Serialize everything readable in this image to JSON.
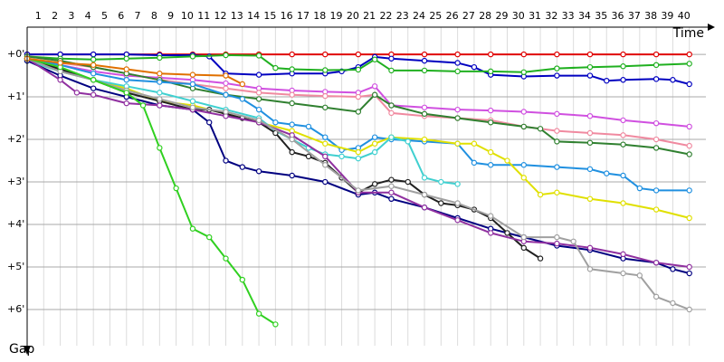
{
  "chart_data": {
    "type": "line",
    "x_label": "Time",
    "y_label": "Gap",
    "xlim": [
      0,
      41
    ],
    "ylim": [
      -0.64,
      6.98
    ],
    "xticks": [
      1,
      2,
      3,
      4,
      5,
      6,
      7,
      8,
      9,
      10,
      11,
      12,
      13,
      14,
      15,
      16,
      17,
      18,
      19,
      20,
      21,
      22,
      23,
      24,
      25,
      26,
      27,
      28,
      29,
      30,
      31,
      32,
      33,
      34,
      35,
      36,
      37,
      38,
      39,
      40
    ],
    "yticks": [
      {
        "value": 0,
        "label": "+0'"
      },
      {
        "value": 1,
        "label": "+1'"
      },
      {
        "value": 2,
        "label": "+2'"
      },
      {
        "value": 3,
        "label": "+3'"
      },
      {
        "value": 4,
        "label": "+4'"
      },
      {
        "value": 5,
        "label": "+5'"
      },
      {
        "value": 6,
        "label": "+6'"
      }
    ],
    "grid": true,
    "series": [
      {
        "color": "#e00000",
        "x": [
          0,
          2,
          4,
          6,
          8,
          10,
          12,
          14,
          16,
          18,
          20,
          22,
          24,
          26,
          28,
          30,
          32,
          34,
          36,
          38,
          40
        ],
        "values": [
          0,
          0,
          0,
          0,
          0,
          0,
          0,
          0,
          0,
          0,
          0,
          0,
          0,
          0,
          0,
          0,
          0,
          0,
          0,
          0,
          0
        ]
      },
      {
        "color": "#0000c0",
        "x": [
          0,
          2,
          4,
          6,
          8,
          10,
          11,
          12,
          14,
          16,
          18,
          19,
          20,
          21,
          22,
          24,
          26,
          27,
          28,
          30,
          32,
          34,
          35,
          36,
          38,
          39,
          40
        ],
        "values": [
          0,
          0,
          0,
          0,
          0.02,
          0.02,
          0.05,
          0.45,
          0.48,
          0.45,
          0.45,
          0.4,
          0.3,
          0.06,
          0.1,
          0.15,
          0.2,
          0.3,
          0.48,
          0.52,
          0.5,
          0.5,
          0.62,
          0.6,
          0.58,
          0.6,
          0.7
        ]
      },
      {
        "color": "#20b020",
        "x": [
          0,
          2,
          4,
          6,
          8,
          10,
          12,
          14,
          15,
          16,
          18,
          20,
          21,
          22,
          24,
          26,
          28,
          30,
          32,
          34,
          36,
          38,
          40
        ],
        "values": [
          0.05,
          0.1,
          0.12,
          0.1,
          0.08,
          0.05,
          0.02,
          0.03,
          0.32,
          0.35,
          0.37,
          0.36,
          0.12,
          0.38,
          0.38,
          0.4,
          0.4,
          0.42,
          0.33,
          0.3,
          0.28,
          0.25,
          0.22
        ]
      },
      {
        "color": "#d050e0",
        "x": [
          0,
          2,
          4,
          6,
          8,
          10,
          12,
          14,
          16,
          18,
          20,
          21,
          22,
          24,
          26,
          28,
          30,
          32,
          34,
          36,
          38,
          40
        ],
        "values": [
          0.1,
          0.25,
          0.4,
          0.5,
          0.55,
          0.6,
          0.68,
          0.8,
          0.85,
          0.88,
          0.9,
          0.75,
          1.2,
          1.25,
          1.3,
          1.32,
          1.35,
          1.4,
          1.45,
          1.55,
          1.62,
          1.7
        ]
      },
      {
        "color": "#f08aa0",
        "x": [
          0,
          2,
          4,
          6,
          8,
          10,
          12,
          14,
          16,
          18,
          20,
          21,
          22,
          24,
          26,
          28,
          30,
          32,
          34,
          36,
          38,
          40
        ],
        "values": [
          0.1,
          0.2,
          0.3,
          0.45,
          0.6,
          0.7,
          0.8,
          0.9,
          0.95,
          0.98,
          1.0,
          0.95,
          1.38,
          1.45,
          1.5,
          1.55,
          1.7,
          1.8,
          1.85,
          1.9,
          2.0,
          2.15
        ]
      },
      {
        "color": "#308030",
        "x": [
          0,
          2,
          4,
          6,
          8,
          10,
          12,
          14,
          16,
          18,
          20,
          21,
          22,
          24,
          26,
          28,
          30,
          31,
          32,
          34,
          36,
          38,
          40
        ],
        "values": [
          0.05,
          0.15,
          0.3,
          0.45,
          0.6,
          0.8,
          0.95,
          1.05,
          1.15,
          1.25,
          1.35,
          0.95,
          1.2,
          1.4,
          1.5,
          1.6,
          1.7,
          1.75,
          2.05,
          2.08,
          2.12,
          2.2,
          2.35
        ]
      },
      {
        "color": "#2090e0",
        "x": [
          0,
          2,
          4,
          6,
          8,
          10,
          12,
          13,
          14,
          15,
          16,
          17,
          18,
          19,
          20,
          21,
          22,
          24,
          26,
          27,
          28,
          30,
          32,
          34,
          35,
          36,
          37,
          38,
          40
        ],
        "values": [
          0.1,
          0.25,
          0.45,
          0.6,
          0.65,
          0.7,
          0.95,
          1.05,
          1.3,
          1.6,
          1.65,
          1.7,
          1.95,
          2.25,
          2.2,
          1.95,
          2.0,
          2.05,
          2.1,
          2.55,
          2.6,
          2.6,
          2.65,
          2.7,
          2.8,
          2.85,
          3.15,
          3.2,
          3.2
        ]
      },
      {
        "color": "#e0e000",
        "x": [
          0,
          2,
          4,
          6,
          8,
          10,
          12,
          14,
          16,
          18,
          20,
          21,
          22,
          24,
          26,
          27,
          28,
          29,
          30,
          31,
          32,
          34,
          36,
          38,
          40
        ],
        "values": [
          0.15,
          0.4,
          0.6,
          0.8,
          1.1,
          1.2,
          1.4,
          1.6,
          1.8,
          2.1,
          2.3,
          2.1,
          1.95,
          2.0,
          2.1,
          2.1,
          2.3,
          2.5,
          2.9,
          3.3,
          3.25,
          3.4,
          3.5,
          3.65,
          3.85
        ]
      },
      {
        "color": "#40d0d0",
        "x": [
          0,
          2,
          4,
          6,
          8,
          10,
          12,
          14,
          15,
          16,
          17,
          18,
          19,
          20,
          21,
          22,
          23,
          24,
          25,
          26
        ],
        "values": [
          0.15,
          0.4,
          0.6,
          0.75,
          0.9,
          1.1,
          1.3,
          1.5,
          1.8,
          2.0,
          2.2,
          2.35,
          2.4,
          2.45,
          2.3,
          1.95,
          2.05,
          2.9,
          3.0,
          3.05
        ]
      },
      {
        "color": "#000080",
        "x": [
          0,
          2,
          4,
          6,
          8,
          10,
          11,
          12,
          13,
          14,
          16,
          18,
          20,
          21,
          22,
          24,
          26,
          28,
          30,
          32,
          34,
          36,
          38,
          39,
          40
        ],
        "values": [
          0.15,
          0.5,
          0.8,
          1.0,
          1.2,
          1.3,
          1.6,
          2.5,
          2.65,
          2.75,
          2.85,
          3.0,
          3.3,
          3.25,
          3.4,
          3.6,
          3.85,
          4.1,
          4.3,
          4.5,
          4.6,
          4.8,
          4.9,
          5.05,
          5.15
        ]
      },
      {
        "color": "#202020",
        "x": [
          0,
          2,
          4,
          6,
          8,
          10,
          11,
          12,
          13,
          14,
          15,
          16,
          17,
          18,
          19,
          20,
          21,
          22,
          23,
          24,
          25,
          26,
          27,
          28,
          29,
          30,
          31
        ],
        "values": [
          0.1,
          0.35,
          0.6,
          0.9,
          1.1,
          1.3,
          1.3,
          1.4,
          1.5,
          1.6,
          1.85,
          2.3,
          2.4,
          2.55,
          2.9,
          3.25,
          3.05,
          2.95,
          3.0,
          3.3,
          3.5,
          3.55,
          3.65,
          3.85,
          4.2,
          4.55,
          4.8
        ]
      },
      {
        "color": "#9030a0",
        "x": [
          0,
          2,
          3,
          4,
          6,
          8,
          10,
          12,
          14,
          16,
          18,
          20,
          22,
          24,
          26,
          28,
          30,
          32,
          34,
          36,
          38,
          40
        ],
        "values": [
          0.1,
          0.6,
          0.9,
          0.95,
          1.15,
          1.2,
          1.3,
          1.45,
          1.6,
          1.9,
          2.4,
          3.25,
          3.25,
          3.6,
          3.9,
          4.2,
          4.4,
          4.45,
          4.55,
          4.7,
          4.9,
          5.0
        ]
      },
      {
        "color": "#a0a0a0",
        "x": [
          0,
          2,
          4,
          6,
          8,
          10,
          12,
          14,
          16,
          18,
          20,
          22,
          24,
          26,
          28,
          30,
          32,
          33,
          34,
          36,
          37,
          38,
          39,
          40
        ],
        "values": [
          0.1,
          0.4,
          0.6,
          0.85,
          1.05,
          1.25,
          1.35,
          1.55,
          2.0,
          2.6,
          3.2,
          3.1,
          3.3,
          3.5,
          3.8,
          4.3,
          4.3,
          4.4,
          5.05,
          5.15,
          5.2,
          5.7,
          5.85,
          6.0
        ]
      },
      {
        "color": "#30d020",
        "x": [
          0,
          2,
          4,
          6,
          7,
          8,
          9,
          10,
          11,
          12,
          13,
          14,
          15
        ],
        "values": [
          0.1,
          0.3,
          0.6,
          0.9,
          1.2,
          2.2,
          3.15,
          4.1,
          4.3,
          4.8,
          5.3,
          6.1,
          6.35
        ]
      },
      {
        "color": "#e07000",
        "x": [
          0,
          2,
          4,
          6,
          8,
          10,
          12,
          13
        ],
        "values": [
          0.1,
          0.2,
          0.25,
          0.35,
          0.45,
          0.48,
          0.5,
          0.7
        ]
      }
    ]
  }
}
